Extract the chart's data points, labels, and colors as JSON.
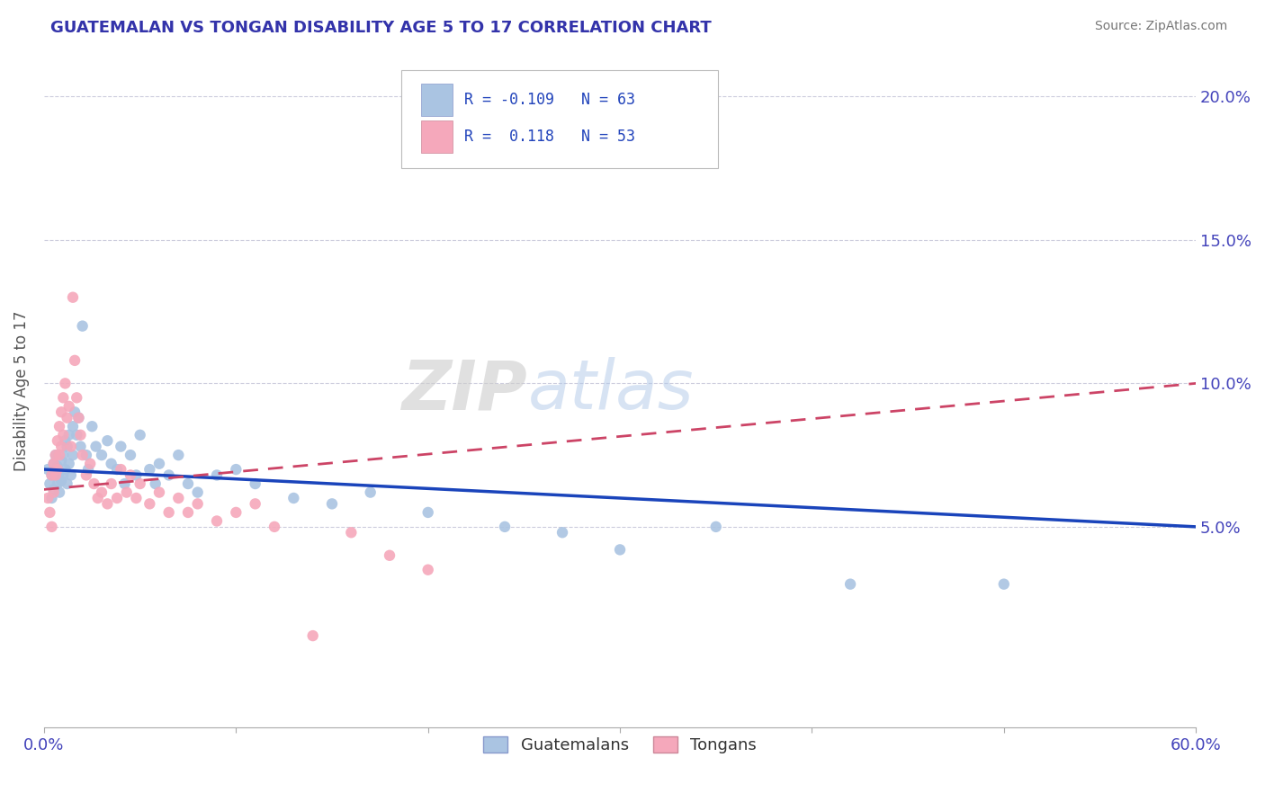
{
  "title": "GUATEMALAN VS TONGAN DISABILITY AGE 5 TO 17 CORRELATION CHART",
  "source": "Source: ZipAtlas.com",
  "ylabel": "Disability Age 5 to 17",
  "xlim": [
    0.0,
    0.6
  ],
  "ylim": [
    -0.02,
    0.215
  ],
  "xticks": [
    0.0,
    0.1,
    0.2,
    0.3,
    0.4,
    0.5,
    0.6
  ],
  "xticklabels": [
    "0.0%",
    "",
    "",
    "",
    "",
    "",
    "60.0%"
  ],
  "yticks": [
    0.05,
    0.1,
    0.15,
    0.2
  ],
  "yticklabels": [
    "5.0%",
    "10.0%",
    "15.0%",
    "20.0%"
  ],
  "guatemalan_color": "#aac4e2",
  "tongan_color": "#f5a8bb",
  "guatemalan_line_color": "#1a44bb",
  "tongan_line_color": "#cc4466",
  "R_guatemalan": -0.109,
  "N_guatemalan": 63,
  "R_tongan": 0.118,
  "N_tongan": 53,
  "watermark_zip": "ZIP",
  "watermark_atlas": "atlas",
  "legend_guatemalans": "Guatemalans",
  "legend_tongans": "Tongans",
  "guatemalan_x": [
    0.002,
    0.003,
    0.004,
    0.004,
    0.005,
    0.005,
    0.006,
    0.006,
    0.007,
    0.007,
    0.008,
    0.008,
    0.009,
    0.009,
    0.01,
    0.01,
    0.011,
    0.011,
    0.012,
    0.012,
    0.013,
    0.013,
    0.014,
    0.015,
    0.015,
    0.016,
    0.017,
    0.018,
    0.019,
    0.02,
    0.022,
    0.023,
    0.025,
    0.027,
    0.03,
    0.033,
    0.035,
    0.038,
    0.04,
    0.042,
    0.045,
    0.048,
    0.05,
    0.055,
    0.058,
    0.06,
    0.065,
    0.07,
    0.075,
    0.08,
    0.09,
    0.1,
    0.11,
    0.13,
    0.15,
    0.17,
    0.2,
    0.24,
    0.27,
    0.3,
    0.35,
    0.42,
    0.5
  ],
  "guatemalan_y": [
    0.07,
    0.065,
    0.068,
    0.06,
    0.072,
    0.063,
    0.075,
    0.068,
    0.071,
    0.065,
    0.069,
    0.062,
    0.073,
    0.066,
    0.075,
    0.068,
    0.08,
    0.07,
    0.078,
    0.065,
    0.082,
    0.072,
    0.068,
    0.085,
    0.075,
    0.09,
    0.082,
    0.088,
    0.078,
    0.12,
    0.075,
    0.07,
    0.085,
    0.078,
    0.075,
    0.08,
    0.072,
    0.07,
    0.078,
    0.065,
    0.075,
    0.068,
    0.082,
    0.07,
    0.065,
    0.072,
    0.068,
    0.075,
    0.065,
    0.062,
    0.068,
    0.07,
    0.065,
    0.06,
    0.058,
    0.062,
    0.055,
    0.05,
    0.048,
    0.042,
    0.05,
    0.03,
    0.03
  ],
  "tongan_x": [
    0.002,
    0.003,
    0.004,
    0.004,
    0.005,
    0.005,
    0.006,
    0.006,
    0.007,
    0.007,
    0.008,
    0.008,
    0.009,
    0.009,
    0.01,
    0.01,
    0.011,
    0.012,
    0.013,
    0.014,
    0.015,
    0.016,
    0.017,
    0.018,
    0.019,
    0.02,
    0.022,
    0.024,
    0.026,
    0.028,
    0.03,
    0.033,
    0.035,
    0.038,
    0.04,
    0.043,
    0.045,
    0.048,
    0.05,
    0.055,
    0.06,
    0.065,
    0.07,
    0.075,
    0.08,
    0.09,
    0.1,
    0.11,
    0.12,
    0.14,
    0.16,
    0.18,
    0.2
  ],
  "tongan_y": [
    0.06,
    0.055,
    0.068,
    0.05,
    0.072,
    0.062,
    0.075,
    0.068,
    0.08,
    0.07,
    0.085,
    0.075,
    0.09,
    0.078,
    0.095,
    0.082,
    0.1,
    0.088,
    0.092,
    0.078,
    0.13,
    0.108,
    0.095,
    0.088,
    0.082,
    0.075,
    0.068,
    0.072,
    0.065,
    0.06,
    0.062,
    0.058,
    0.065,
    0.06,
    0.07,
    0.062,
    0.068,
    0.06,
    0.065,
    0.058,
    0.062,
    0.055,
    0.06,
    0.055,
    0.058,
    0.052,
    0.055,
    0.058,
    0.05,
    0.012,
    0.048,
    0.04,
    0.035
  ]
}
